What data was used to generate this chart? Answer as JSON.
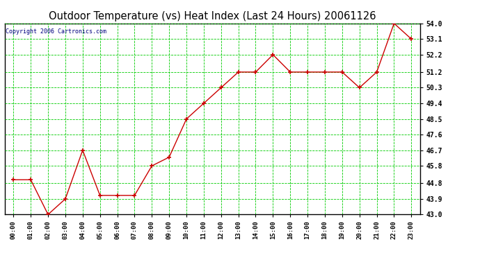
{
  "title": "Outdoor Temperature (vs) Heat Index (Last 24 Hours) 20061126",
  "copyright": "Copyright 2006 Cartronics.com",
  "x_labels": [
    "00:00",
    "01:00",
    "02:00",
    "03:00",
    "04:00",
    "05:00",
    "06:00",
    "07:00",
    "08:00",
    "09:00",
    "10:00",
    "11:00",
    "12:00",
    "13:00",
    "14:00",
    "15:00",
    "16:00",
    "17:00",
    "18:00",
    "19:00",
    "20:00",
    "21:00",
    "22:00",
    "23:00"
  ],
  "y_values": [
    45.0,
    45.0,
    43.0,
    43.9,
    46.7,
    44.1,
    44.1,
    44.1,
    45.8,
    46.3,
    48.5,
    49.4,
    50.3,
    51.2,
    51.2,
    52.2,
    51.2,
    51.2,
    51.2,
    51.2,
    50.3,
    51.2,
    54.0,
    53.1
  ],
  "y_min": 43.0,
  "y_max": 54.0,
  "y_ticks": [
    43.0,
    43.9,
    44.8,
    45.8,
    46.7,
    47.6,
    48.5,
    49.4,
    50.3,
    51.2,
    52.2,
    53.1,
    54.0
  ],
  "line_color": "#cc0000",
  "marker_color": "#cc0000",
  "bg_color": "#ffffff",
  "grid_color": "#00cc00",
  "title_color": "#000000",
  "tick_label_color": "#000000",
  "copyright_color": "#000080",
  "border_color": "#000000"
}
